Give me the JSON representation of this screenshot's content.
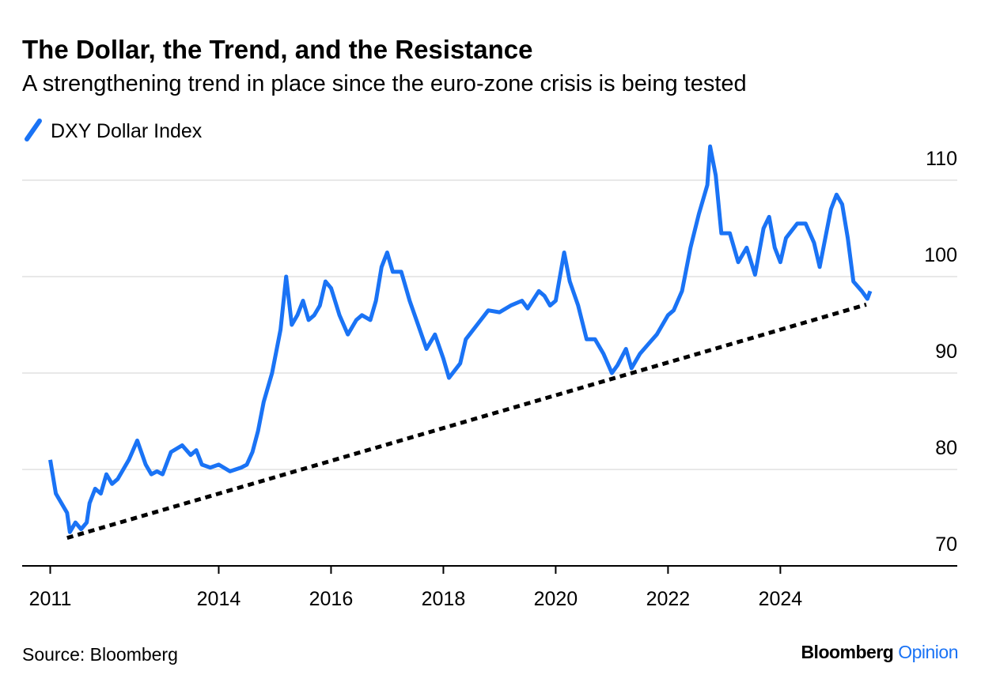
{
  "chart_data": {
    "type": "line",
    "title": "The Dollar, the Trend, and the Resistance",
    "subtitle": "A strengthening trend in place since the euro-zone crisis is being tested",
    "series": [
      {
        "name": "DXY Dollar Index",
        "color": "#1a73f5",
        "x": [
          2011.0,
          2011.1,
          2011.3,
          2011.35,
          2011.45,
          2011.55,
          2011.65,
          2011.7,
          2011.8,
          2011.9,
          2012.0,
          2012.1,
          2012.2,
          2012.4,
          2012.55,
          2012.7,
          2012.8,
          2012.9,
          2013.0,
          2013.15,
          2013.35,
          2013.5,
          2013.6,
          2013.7,
          2013.85,
          2014.0,
          2014.2,
          2014.4,
          2014.5,
          2014.6,
          2014.7,
          2014.8,
          2014.95,
          2015.1,
          2015.2,
          2015.3,
          2015.4,
          2015.5,
          2015.6,
          2015.7,
          2015.8,
          2015.9,
          2016.0,
          2016.15,
          2016.3,
          2016.45,
          2016.55,
          2016.7,
          2016.8,
          2016.9,
          2017.0,
          2017.1,
          2017.25,
          2017.4,
          2017.55,
          2017.7,
          2017.85,
          2018.0,
          2018.1,
          2018.3,
          2018.4,
          2018.6,
          2018.8,
          2019.0,
          2019.2,
          2019.4,
          2019.5,
          2019.7,
          2019.8,
          2019.9,
          2020.0,
          2020.15,
          2020.25,
          2020.4,
          2020.55,
          2020.7,
          2020.85,
          2021.0,
          2021.1,
          2021.25,
          2021.35,
          2021.5,
          2021.65,
          2021.8,
          2022.0,
          2022.1,
          2022.25,
          2022.4,
          2022.55,
          2022.7,
          2022.75,
          2022.85,
          2022.95,
          2023.1,
          2023.25,
          2023.4,
          2023.55,
          2023.7,
          2023.8,
          2023.9,
          2024.0,
          2024.1,
          2024.3,
          2024.45,
          2024.6,
          2024.7,
          2024.8,
          2024.9,
          2025.0,
          2025.1,
          2025.2,
          2025.3,
          2025.45,
          2025.55,
          2025.6
        ],
        "values": [
          81,
          77.5,
          75.5,
          73.5,
          74.5,
          73.8,
          74.5,
          76.5,
          78,
          77.5,
          79.5,
          78.5,
          79,
          81,
          83,
          80.5,
          79.5,
          79.8,
          79.5,
          81.8,
          82.5,
          81.5,
          82,
          80.5,
          80.2,
          80.5,
          79.8,
          80.2,
          80.5,
          81.8,
          84,
          87,
          90,
          94.5,
          100,
          95,
          96,
          97.5,
          95.5,
          96,
          97,
          99.5,
          98.8,
          96,
          94,
          95.5,
          96,
          95.5,
          97.5,
          101,
          102.5,
          100.5,
          100.5,
          97.5,
          95,
          92.5,
          94,
          91.5,
          89.5,
          91,
          93.5,
          95,
          96.5,
          96.3,
          97,
          97.5,
          96.7,
          98.5,
          98,
          97,
          97.5,
          102.5,
          99.5,
          97,
          93.5,
          93.5,
          92,
          90,
          90.8,
          92.5,
          90.5,
          92,
          93,
          94,
          96,
          96.5,
          98.5,
          103,
          106.5,
          109.5,
          113.5,
          110.5,
          104.5,
          104.5,
          101.5,
          103,
          100.2,
          105,
          106.2,
          103,
          101.5,
          104,
          105.5,
          105.5,
          103.5,
          101,
          104,
          107,
          108.5,
          107.5,
          104,
          99.5,
          98.5,
          97.7,
          98.5
        ]
      }
    ],
    "trendline": {
      "x": [
        2011.3,
        2025.53
      ],
      "values": [
        72.9,
        97.1
      ],
      "color": "#000000"
    },
    "xlim": [
      2010.5,
      2027.15
    ],
    "xticks": [
      2011,
      2014,
      2016,
      2018,
      2020,
      2022,
      2024
    ],
    "ylim": [
      70,
      114
    ],
    "yticks": [
      70,
      80,
      90,
      100,
      110
    ],
    "grid": true,
    "source": "Source: Bloomberg",
    "logo": [
      "Bloomberg",
      "Opinion"
    ]
  }
}
